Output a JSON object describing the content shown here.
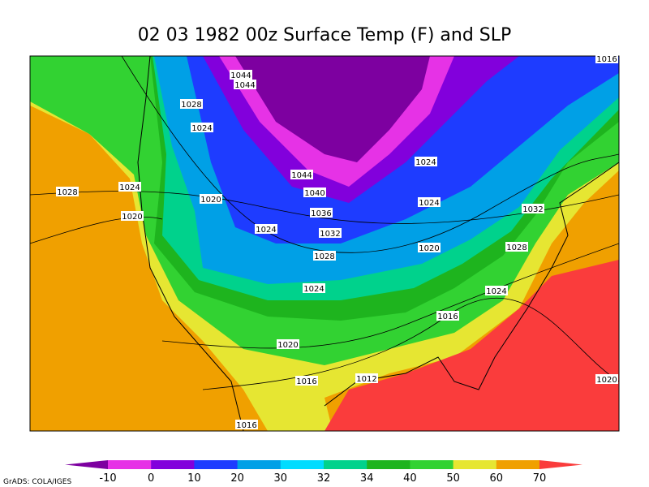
{
  "title": "02 03 1982 00z Surface Temp (F) and SLP",
  "contour_labels": [
    "1044",
    "1044",
    "1028",
    "1024",
    "1028",
    "1024",
    "1020",
    "1020",
    "1024",
    "1044",
    "1040",
    "1036",
    "1032",
    "1028",
    "1024",
    "1020",
    "1016",
    "1012",
    "1016",
    "1024",
    "1024",
    "1020",
    "1032",
    "1028",
    "1024",
    "1016",
    "1020",
    "1016"
  ],
  "colorbar": {
    "ticks": [
      -10,
      0,
      10,
      20,
      30,
      32,
      34,
      40,
      50,
      60,
      70
    ],
    "colors": [
      "#7d00a0",
      "#e632e6",
      "#8200dc",
      "#1e3cff",
      "#00a0e6",
      "#00dcff",
      "#00d28c",
      "#1eb41e",
      "#32d232",
      "#e6e632",
      "#f0a000",
      "#fa3c3c"
    ]
  },
  "credit": "GrADS: COLA/IGES"
}
